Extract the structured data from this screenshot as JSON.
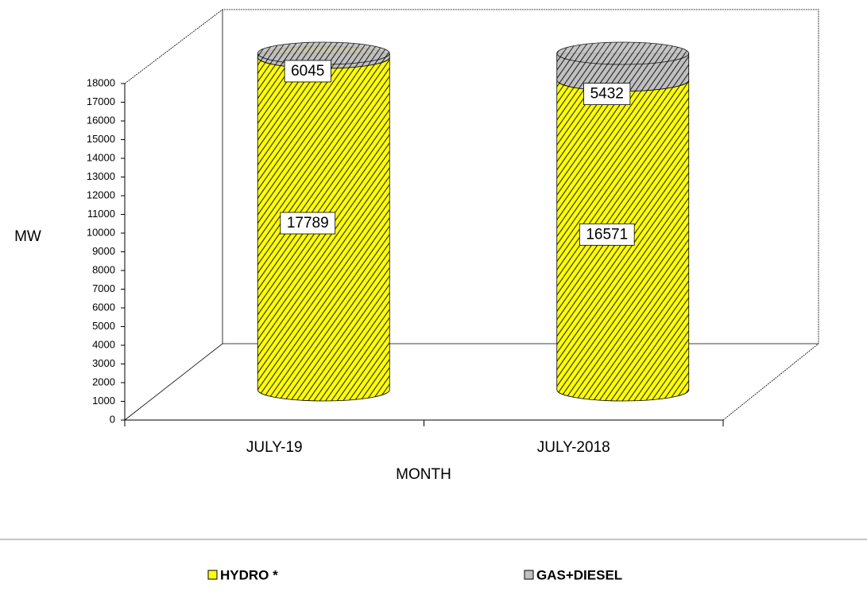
{
  "chart_data": {
    "type": "bar3d",
    "stacked": true,
    "categories": [
      "JULY-19",
      "JULY-2018"
    ],
    "series": [
      {
        "name": "HYDRO *",
        "color": "#ffff00",
        "values": [
          17789,
          16571
        ]
      },
      {
        "name": "GAS+DIESEL",
        "color": "#c0c0c0",
        "values": [
          6045,
          5432
        ]
      }
    ],
    "x_label": "MONTH",
    "y_label": "MW",
    "ylim": [
      0,
      18000
    ],
    "yticks": [
      0,
      1000,
      2000,
      3000,
      4000,
      5000,
      6000,
      7000,
      8000,
      9000,
      10000,
      11000,
      12000,
      13000,
      14000,
      15000,
      16000,
      17000,
      18000
    ],
    "legend": "bottom"
  }
}
